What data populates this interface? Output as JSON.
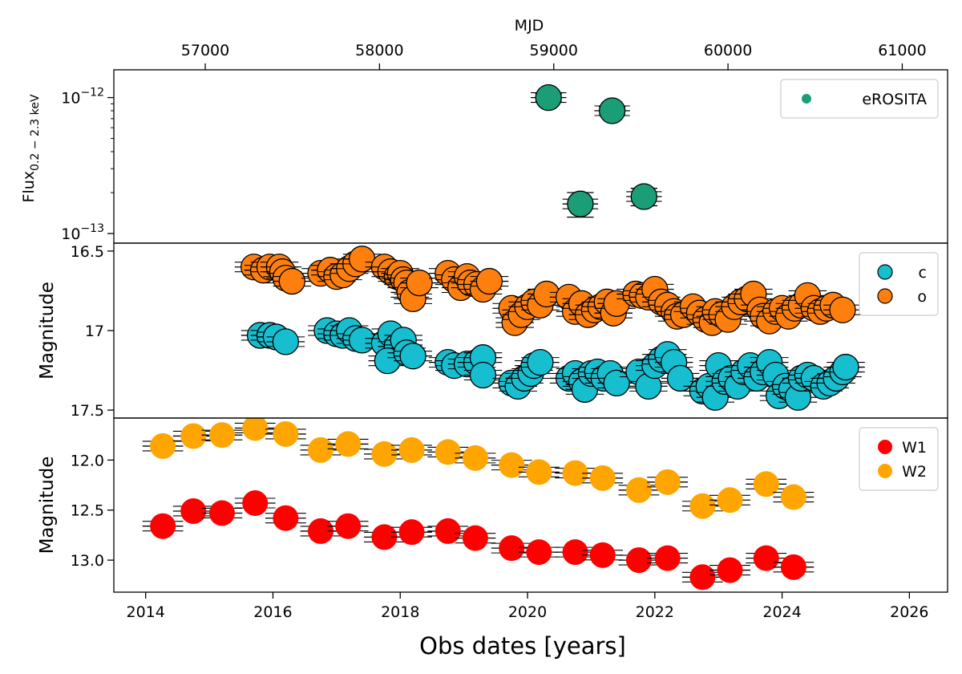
{
  "chart_data": [
    {
      "type": "scatter",
      "panel": "xray",
      "ylabel_main": "Flux",
      "ylabel_sub": "0.2 − 2.3 keV",
      "yscale": "log",
      "ylim": [
        8.5e-14,
        1.6e-12
      ],
      "yticks": [
        {
          "value": 1e-12,
          "base": "10",
          "exp": "−12"
        },
        {
          "value": 1e-13,
          "base": "10",
          "exp": "−13"
        }
      ],
      "legend_position": "top-right",
      "series": [
        {
          "name": "eROSITA",
          "color": "#1b9e77",
          "error_x": 0.28,
          "points": [
            {
              "x": 2020.33,
              "y": 1e-12,
              "ylo": 9.3e-13,
              "yhi": 1.07e-12
            },
            {
              "x": 2021.33,
              "y": 8e-13,
              "ylo": 7.4e-13,
              "yhi": 8.6e-13
            },
            {
              "x": 2020.83,
              "y": 1.65e-13,
              "ylo": 1.32e-13,
              "yhi": 2e-13
            },
            {
              "x": 2021.83,
              "y": 1.87e-13,
              "ylo": 1.6e-13,
              "yhi": 2.15e-13
            }
          ]
        }
      ]
    },
    {
      "type": "scatter",
      "panel": "atlas",
      "ylabel": "Magnitude",
      "ylim": [
        17.55,
        16.45
      ],
      "yticks": [
        16.5,
        17.0,
        17.5
      ],
      "legend_position": "top-right",
      "series": [
        {
          "name": "c",
          "color": "#17becf",
          "error_x": 0.3,
          "points": [
            [
              2015.8,
              17.03
            ],
            [
              2015.95,
              17.03
            ],
            [
              2016.05,
              17.04
            ],
            [
              2016.2,
              17.07
            ],
            [
              2016.85,
              17.0
            ],
            [
              2017.0,
              17.02
            ],
            [
              2017.1,
              17.03
            ],
            [
              2017.2,
              17.0
            ],
            [
              2017.3,
              17.05
            ],
            [
              2017.4,
              17.06
            ],
            [
              2017.75,
              17.08
            ],
            [
              2017.85,
              17.02
            ],
            [
              2017.95,
              17.1
            ],
            [
              2018.05,
              17.06
            ],
            [
              2017.8,
              17.19
            ],
            [
              2018.1,
              17.14
            ],
            [
              2018.2,
              17.16
            ],
            [
              2018.75,
              17.2
            ],
            [
              2018.85,
              17.22
            ],
            [
              2019.05,
              17.21
            ],
            [
              2019.2,
              17.2
            ],
            [
              2019.3,
              17.17
            ],
            [
              2019.3,
              17.28
            ],
            [
              2019.75,
              17.33
            ],
            [
              2019.85,
              17.35
            ],
            [
              2019.95,
              17.3
            ],
            [
              2020.05,
              17.27
            ],
            [
              2020.1,
              17.22
            ],
            [
              2020.2,
              17.2
            ],
            [
              2020.65,
              17.3
            ],
            [
              2020.75,
              17.27
            ],
            [
              2020.85,
              17.32
            ],
            [
              2020.9,
              17.37
            ],
            [
              2021.0,
              17.27
            ],
            [
              2021.1,
              17.26
            ],
            [
              2021.2,
              17.3
            ],
            [
              2021.3,
              17.27
            ],
            [
              2021.4,
              17.33
            ],
            [
              2021.75,
              17.26
            ],
            [
              2021.9,
              17.35
            ],
            [
              2022.0,
              17.22
            ],
            [
              2022.1,
              17.18
            ],
            [
              2022.2,
              17.15
            ],
            [
              2022.3,
              17.2
            ],
            [
              2022.4,
              17.3
            ],
            [
              2022.75,
              17.38
            ],
            [
              2022.85,
              17.35
            ],
            [
              2022.95,
              17.42
            ],
            [
              2023.0,
              17.22
            ],
            [
              2023.1,
              17.32
            ],
            [
              2023.2,
              17.3
            ],
            [
              2023.3,
              17.35
            ],
            [
              2023.4,
              17.26
            ],
            [
              2023.5,
              17.22
            ],
            [
              2023.6,
              17.3
            ],
            [
              2023.7,
              17.26
            ],
            [
              2023.8,
              17.2
            ],
            [
              2023.9,
              17.28
            ],
            [
              2023.95,
              17.41
            ],
            [
              2024.05,
              17.35
            ],
            [
              2024.15,
              17.37
            ],
            [
              2024.25,
              17.42
            ],
            [
              2024.3,
              17.3
            ],
            [
              2024.4,
              17.28
            ],
            [
              2024.5,
              17.3
            ],
            [
              2024.65,
              17.35
            ],
            [
              2024.75,
              17.33
            ],
            [
              2024.85,
              17.3
            ],
            [
              2024.95,
              17.26
            ],
            [
              2025.0,
              17.23
            ]
          ]
        },
        {
          "name": "o",
          "color": "#ff7f0e",
          "error_x": 0.3,
          "points": [
            [
              2015.7,
              16.6
            ],
            [
              2015.85,
              16.62
            ],
            [
              2015.95,
              16.6
            ],
            [
              2016.1,
              16.6
            ],
            [
              2016.15,
              16.63
            ],
            [
              2016.2,
              16.67
            ],
            [
              2016.3,
              16.69
            ],
            [
              2016.75,
              16.64
            ],
            [
              2016.9,
              16.62
            ],
            [
              2017.0,
              16.66
            ],
            [
              2017.1,
              16.65
            ],
            [
              2017.2,
              16.61
            ],
            [
              2017.3,
              16.58
            ],
            [
              2017.4,
              16.55
            ],
            [
              2017.75,
              16.6
            ],
            [
              2017.85,
              16.63
            ],
            [
              2017.95,
              16.66
            ],
            [
              2018.0,
              16.64
            ],
            [
              2018.05,
              16.68
            ],
            [
              2018.1,
              16.7
            ],
            [
              2018.15,
              16.76
            ],
            [
              2018.2,
              16.8
            ],
            [
              2018.3,
              16.7
            ],
            [
              2018.75,
              16.64
            ],
            [
              2018.85,
              16.68
            ],
            [
              2018.95,
              16.73
            ],
            [
              2019.05,
              16.66
            ],
            [
              2019.1,
              16.7
            ],
            [
              2019.2,
              16.71
            ],
            [
              2019.3,
              16.74
            ],
            [
              2019.4,
              16.69
            ],
            [
              2019.75,
              16.86
            ],
            [
              2019.8,
              16.95
            ],
            [
              2019.9,
              16.9
            ],
            [
              2020.0,
              16.85
            ],
            [
              2020.1,
              16.82
            ],
            [
              2020.2,
              16.84
            ],
            [
              2020.3,
              16.77
            ],
            [
              2020.65,
              16.79
            ],
            [
              2020.75,
              16.88
            ],
            [
              2020.85,
              16.83
            ],
            [
              2020.95,
              16.9
            ],
            [
              2021.05,
              16.87
            ],
            [
              2021.15,
              16.85
            ],
            [
              2021.25,
              16.82
            ],
            [
              2021.35,
              16.89
            ],
            [
              2021.4,
              16.83
            ],
            [
              2021.7,
              16.77
            ],
            [
              2021.8,
              16.78
            ],
            [
              2021.9,
              16.79
            ],
            [
              2022.0,
              16.74
            ],
            [
              2022.1,
              16.82
            ],
            [
              2022.2,
              16.84
            ],
            [
              2022.3,
              16.88
            ],
            [
              2022.35,
              16.91
            ],
            [
              2022.45,
              16.9
            ],
            [
              2022.6,
              16.85
            ],
            [
              2022.7,
              16.89
            ],
            [
              2022.8,
              16.93
            ],
            [
              2022.9,
              16.95
            ],
            [
              2022.95,
              16.88
            ],
            [
              2023.05,
              16.9
            ],
            [
              2023.15,
              16.93
            ],
            [
              2023.25,
              16.85
            ],
            [
              2023.35,
              16.82
            ],
            [
              2023.45,
              16.8
            ],
            [
              2023.55,
              16.77
            ],
            [
              2023.65,
              16.87
            ],
            [
              2023.7,
              16.91
            ],
            [
              2023.8,
              16.94
            ],
            [
              2023.9,
              16.88
            ],
            [
              2024.0,
              16.86
            ],
            [
              2024.1,
              16.91
            ],
            [
              2024.2,
              16.86
            ],
            [
              2024.3,
              16.84
            ],
            [
              2024.4,
              16.78
            ],
            [
              2024.5,
              16.86
            ],
            [
              2024.6,
              16.88
            ],
            [
              2024.7,
              16.86
            ],
            [
              2024.8,
              16.84
            ],
            [
              2024.95,
              16.87
            ]
          ]
        }
      ]
    },
    {
      "type": "scatter",
      "panel": "wise",
      "ylabel": "Magnitude",
      "ylim": [
        13.32,
        11.58
      ],
      "yticks": [
        "12.0",
        "12.5",
        "13.0"
      ],
      "legend_position": "top-right",
      "series": [
        {
          "name": "W1",
          "color": "#ff0000",
          "error_x": 0.32,
          "points": [
            [
              2014.27,
              12.66
            ],
            [
              2014.75,
              12.51
            ],
            [
              2015.2,
              12.53
            ],
            [
              2015.72,
              12.43
            ],
            [
              2016.2,
              12.58
            ],
            [
              2016.75,
              12.71
            ],
            [
              2017.18,
              12.66
            ],
            [
              2017.75,
              12.77
            ],
            [
              2018.18,
              12.72
            ],
            [
              2018.75,
              12.71
            ],
            [
              2019.18,
              12.78
            ],
            [
              2019.75,
              12.88
            ],
            [
              2020.18,
              12.92
            ],
            [
              2020.75,
              12.92
            ],
            [
              2021.18,
              12.95
            ],
            [
              2021.75,
              13.0
            ],
            [
              2022.2,
              12.98
            ],
            [
              2022.75,
              13.17
            ],
            [
              2023.18,
              13.1
            ],
            [
              2023.75,
              12.98
            ],
            [
              2024.18,
              13.07
            ]
          ]
        },
        {
          "name": "W2",
          "color": "#ffa500",
          "error_x": 0.32,
          "points": [
            [
              2014.27,
              11.86
            ],
            [
              2014.75,
              11.76
            ],
            [
              2015.2,
              11.75
            ],
            [
              2015.72,
              11.68
            ],
            [
              2016.2,
              11.74
            ],
            [
              2016.75,
              11.9
            ],
            [
              2017.18,
              11.84
            ],
            [
              2017.75,
              11.94
            ],
            [
              2018.18,
              11.9
            ],
            [
              2018.75,
              11.92
            ],
            [
              2019.18,
              11.98
            ],
            [
              2019.75,
              12.05
            ],
            [
              2020.18,
              12.12
            ],
            [
              2020.75,
              12.13
            ],
            [
              2021.18,
              12.18
            ],
            [
              2021.75,
              12.3
            ],
            [
              2022.2,
              12.22
            ],
            [
              2022.75,
              12.46
            ],
            [
              2023.18,
              12.4
            ],
            [
              2023.75,
              12.24
            ],
            [
              2024.18,
              12.37
            ]
          ]
        }
      ]
    }
  ],
  "xaxis": {
    "label": "Obs dates [years]",
    "xlim": [
      2013.5,
      2026.6
    ],
    "ticks": [
      2014,
      2016,
      2018,
      2020,
      2022,
      2024,
      2026
    ]
  },
  "top_axis": {
    "label": "MJD",
    "ticks": [
      57000,
      58000,
      59000,
      60000,
      61000
    ],
    "mjd_ref_year": 2000,
    "mjd_ref_value": 51544.5,
    "days_per_year": 365.25
  }
}
